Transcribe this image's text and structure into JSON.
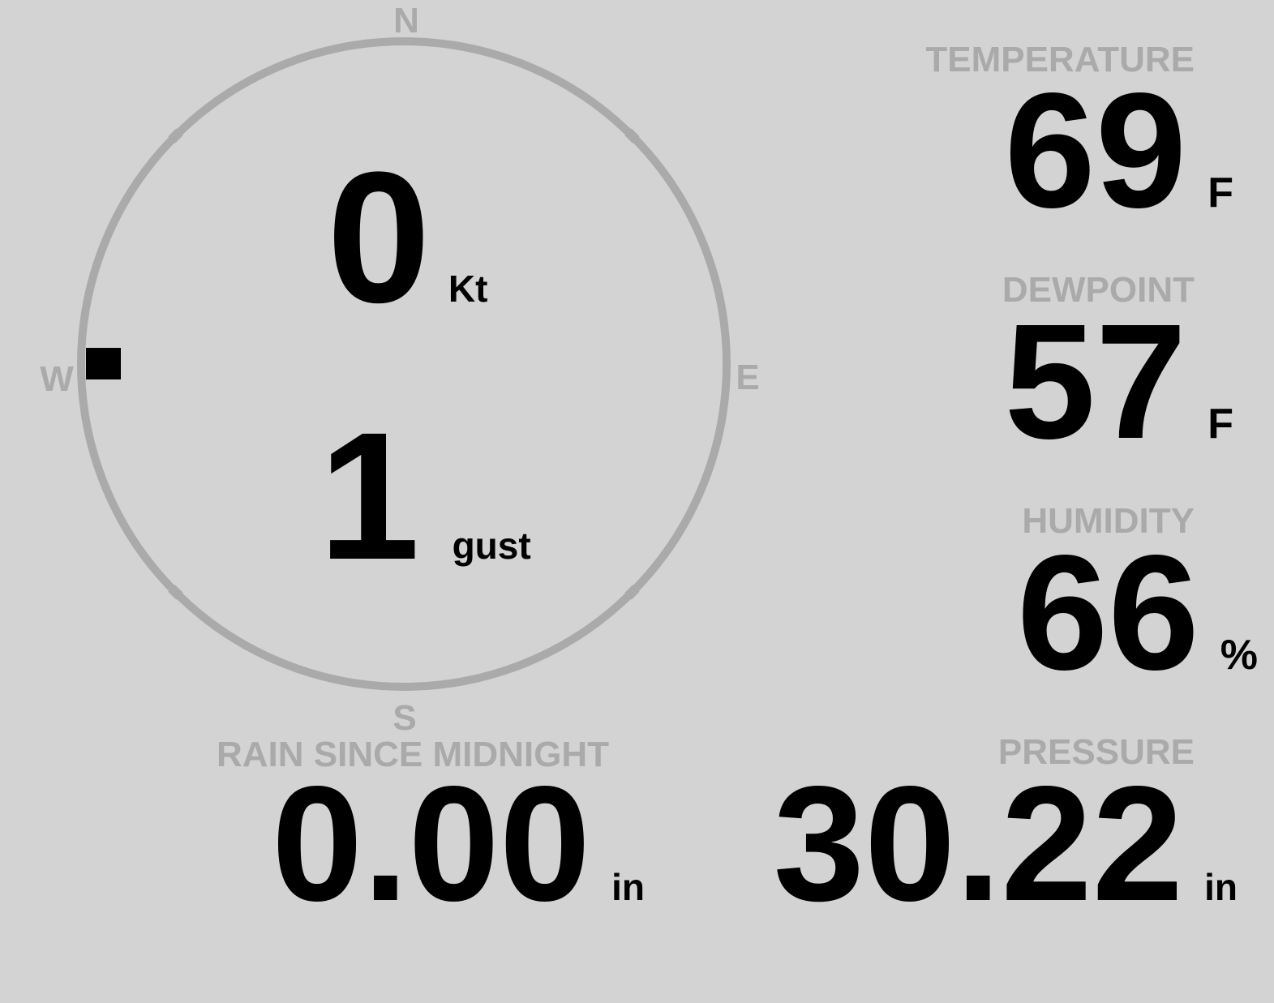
{
  "colors": {
    "background": "#d3d3d3",
    "label": "#aaaaaa",
    "value": "#000000",
    "compass_ring": "#aaaaaa",
    "wind_marker": "#000000"
  },
  "wind": {
    "compass_labels": {
      "n": "N",
      "e": "E",
      "s": "S",
      "w": "W"
    },
    "direction_deg": 270,
    "speed": "0",
    "speed_unit": "Kt",
    "gust": "1",
    "gust_unit": "gust"
  },
  "temperature": {
    "label": "TEMPERATURE",
    "value": "69",
    "unit": "F"
  },
  "dewpoint": {
    "label": "DEWPOINT",
    "value": "57",
    "unit": "F"
  },
  "humidity": {
    "label": "HUMIDITY",
    "value": "66",
    "unit": "%"
  },
  "rain": {
    "label": "RAIN SINCE MIDNIGHT",
    "value": "0.00",
    "unit": "in"
  },
  "pressure": {
    "label": "PRESSURE",
    "value": "30.22",
    "unit": "in"
  }
}
